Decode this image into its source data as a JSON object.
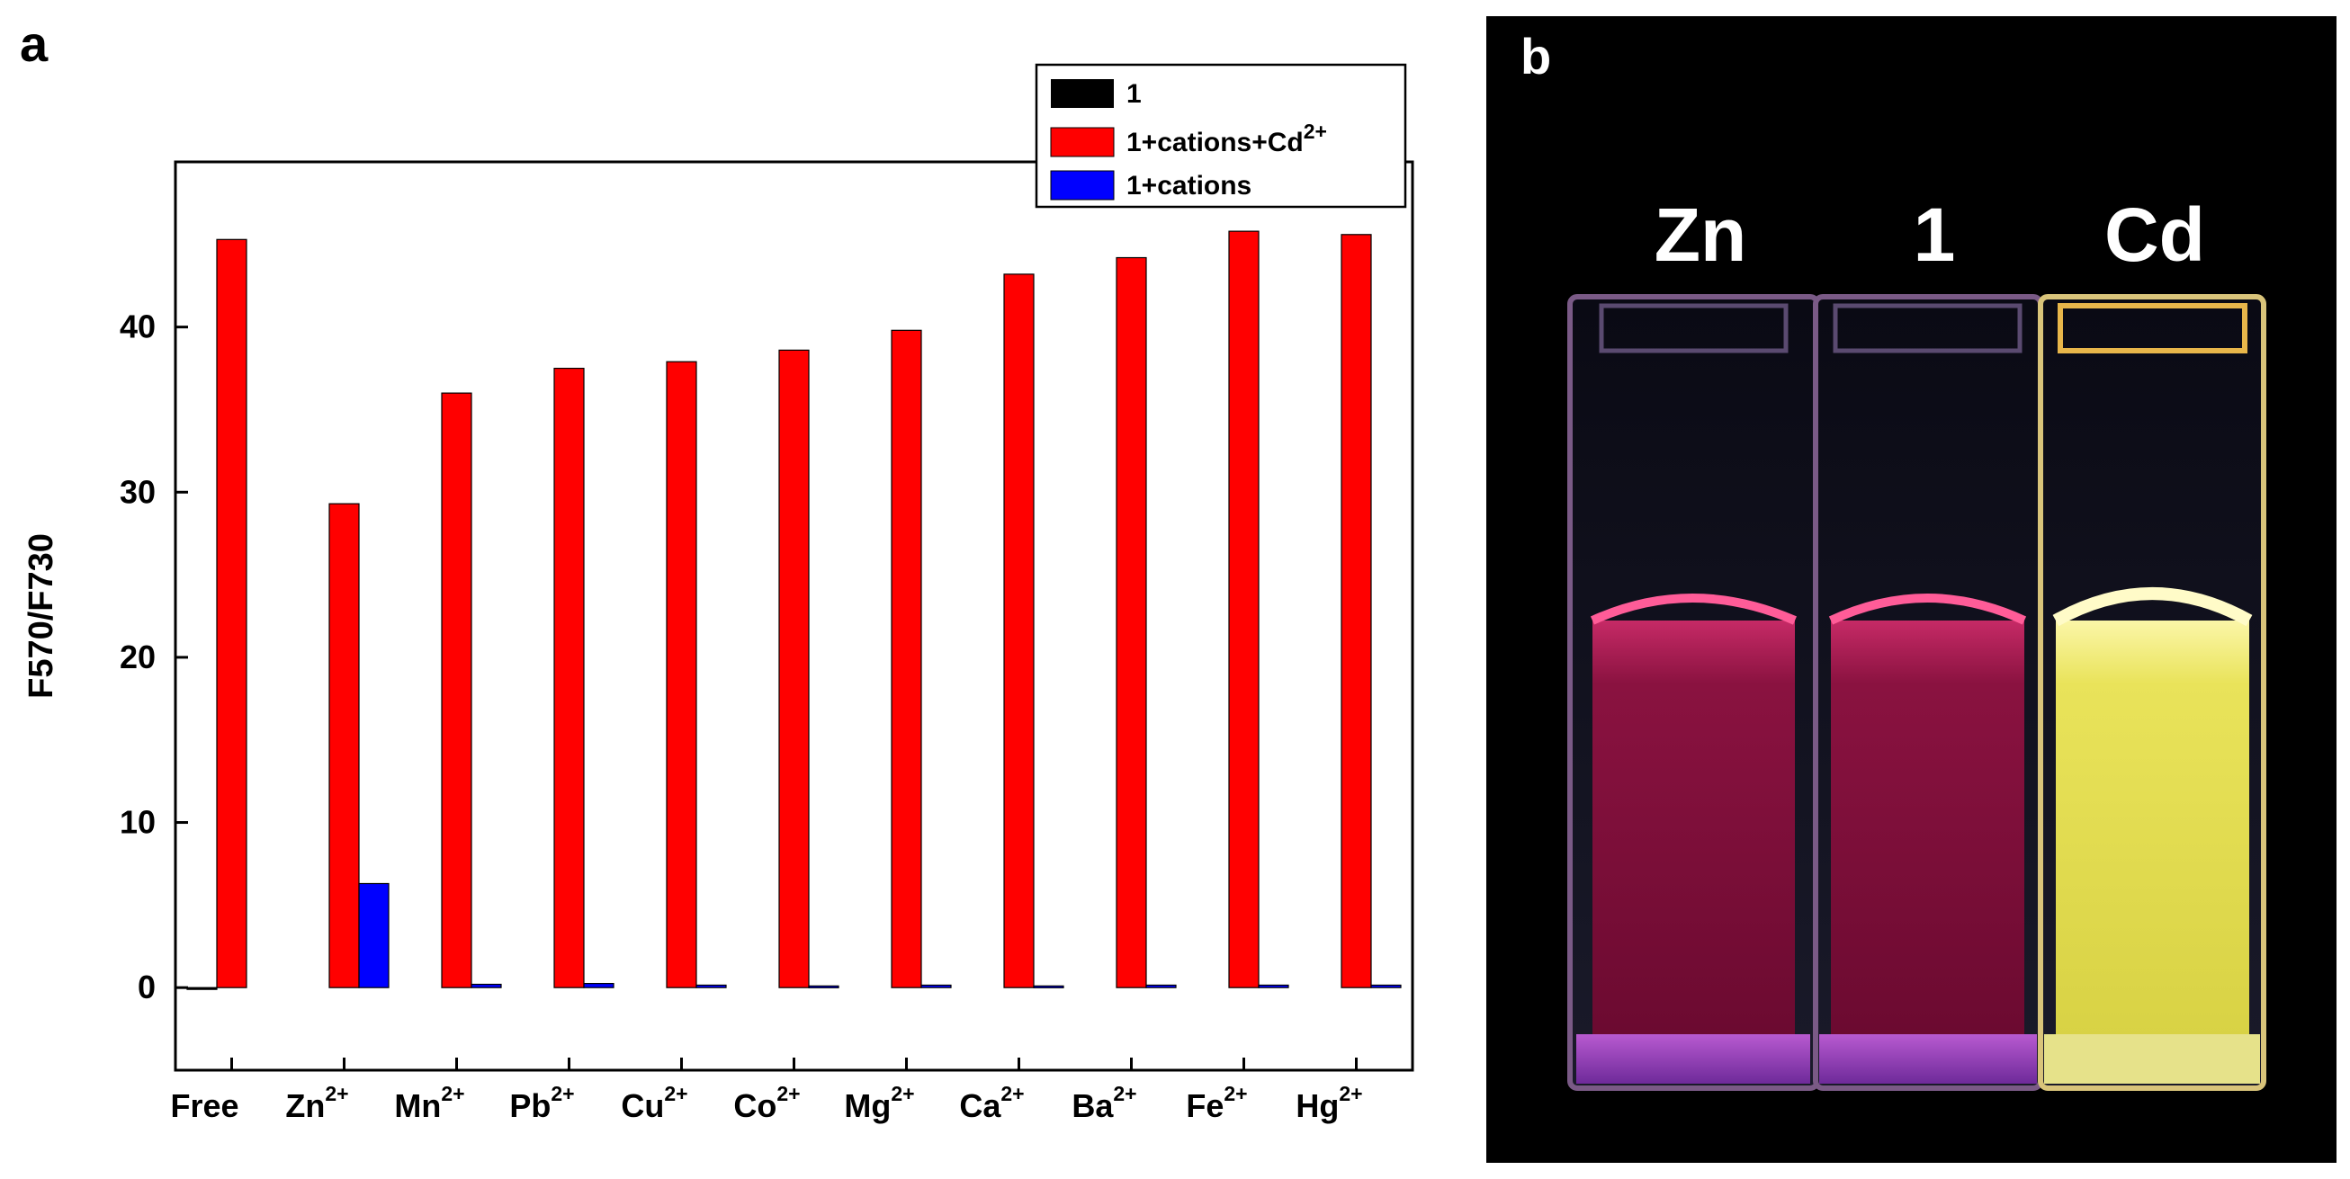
{
  "panel_a_label": "a",
  "panel_b_label": "b",
  "chart_data": {
    "type": "bar",
    "title": "",
    "xlabel": "",
    "ylabel": "F570/F730",
    "ylim": [
      -5,
      50
    ],
    "yticks": [
      0,
      10,
      20,
      30,
      40
    ],
    "categories": [
      {
        "base": "Free",
        "sup": ""
      },
      {
        "base": "Zn",
        "sup": "2+"
      },
      {
        "base": "Mn",
        "sup": "2+"
      },
      {
        "base": "Pb",
        "sup": "2+"
      },
      {
        "base": "Cu",
        "sup": "2+"
      },
      {
        "base": "Co",
        "sup": "2+"
      },
      {
        "base": "Mg",
        "sup": "2+"
      },
      {
        "base": "Ca",
        "sup": "2+"
      },
      {
        "base": "Ba",
        "sup": "2+"
      },
      {
        "base": "Fe",
        "sup": "2+"
      },
      {
        "base": "Hg",
        "sup": "2+"
      }
    ],
    "series": [
      {
        "name": "1",
        "name_sup": "",
        "color": "#000000",
        "values": [
          0.0,
          null,
          null,
          null,
          null,
          null,
          null,
          null,
          null,
          null,
          null
        ]
      },
      {
        "name": "1+cations+Cd",
        "name_sup": "2+",
        "color": "#ff0000",
        "values": [
          45.3,
          29.3,
          36.0,
          37.5,
          37.9,
          38.6,
          39.8,
          43.2,
          44.2,
          45.8,
          45.6
        ]
      },
      {
        "name": "1+cations",
        "name_sup": "",
        "color": "#0000ff",
        "values": [
          null,
          6.3,
          0.2,
          0.25,
          0.15,
          0.1,
          0.15,
          0.1,
          0.15,
          0.15,
          0.15
        ]
      }
    ],
    "legend_position": "top-right",
    "grid": false
  },
  "photo": {
    "background": "#000000",
    "cuvettes": [
      {
        "label": "Zn",
        "liquid_color": "#7a0f3a",
        "glow_color": "#ff4c8a"
      },
      {
        "label": "1",
        "liquid_color": "#7a0f3a",
        "glow_color": "#ff4c8a"
      },
      {
        "label": "Cd",
        "liquid_color": "#dcd64a",
        "glow_color": "#fbf6a0"
      }
    ]
  }
}
